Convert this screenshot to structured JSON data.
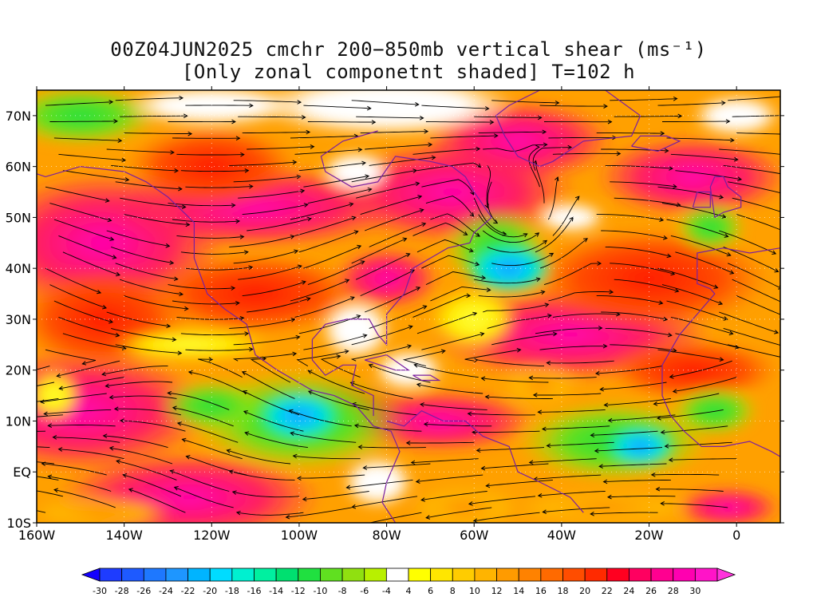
{
  "title": {
    "line1": "00Z04JUN2025 cmchr 200−850mb vertical shear (ms⁻¹)",
    "line2": "[Only zonal componetnt shaded] T=102 h"
  },
  "map": {
    "lat_labels": [
      "70N",
      "60N",
      "50N",
      "40N",
      "30N",
      "20N",
      "10N",
      "EQ",
      "10S"
    ],
    "lon_labels": [
      "160W",
      "140W",
      "120W",
      "100W",
      "80W",
      "60W",
      "40W",
      "20W",
      "0"
    ],
    "lat_range": [
      -10,
      75
    ],
    "lon_range": [
      -160,
      10
    ],
    "field": "zonal vertical shear (shaded) with streamlines",
    "streamline_color": "#000000",
    "coastline_color": "#7a1fa0"
  },
  "colorbar": {
    "tick_labels": [
      "-30",
      "-28",
      "-26",
      "-24",
      "-22",
      "-20",
      "-18",
      "-16",
      "-14",
      "-12",
      "-10",
      "-8",
      "-6",
      "-4",
      "4",
      "6",
      "8",
      "10",
      "12",
      "14",
      "16",
      "18",
      "20",
      "22",
      "24",
      "26",
      "28",
      "30"
    ],
    "colors": [
      "#1e3cff",
      "#1e5aff",
      "#1e78ff",
      "#1e96ff",
      "#00b4ff",
      "#00dcff",
      "#00f0d0",
      "#00f0a0",
      "#00e070",
      "#20e040",
      "#60e020",
      "#90e010",
      "#b8f000",
      "#ffffff",
      "#ffff00",
      "#ffe600",
      "#ffcc00",
      "#ffb400",
      "#ff9b00",
      "#ff8200",
      "#ff6a00",
      "#ff4d00",
      "#ff2a00",
      "#ff0020",
      "#ff0060",
      "#ff0090",
      "#ff00b0",
      "#ff14c8"
    ],
    "under_color": "#1400ff",
    "over_color": "#ff32dc"
  }
}
